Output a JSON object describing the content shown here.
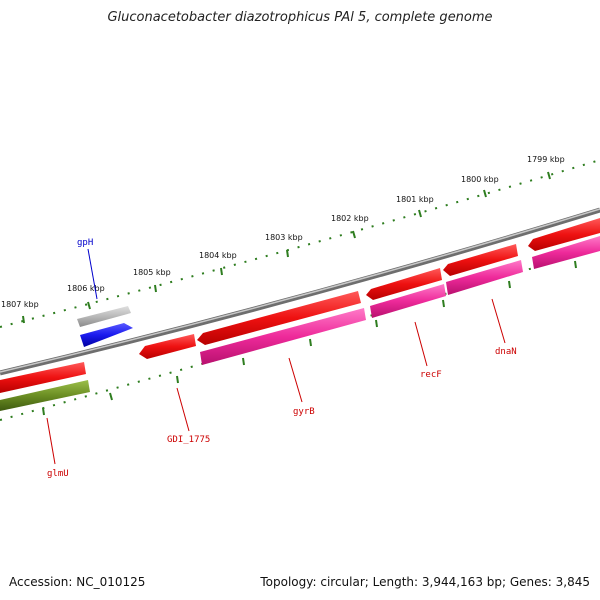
{
  "header": {
    "title": "Gluconacetobacter diazotrophicus PAl 5, complete genome"
  },
  "footer": {
    "accession": "Accession: NC_010125",
    "summary": "Topology: circular; Length: 3,944,163 bp; Genes: 3,845"
  },
  "colors": {
    "backbone": "#8a8a8a",
    "tick": "#2e7d1f",
    "cds_forward": "#ee1111",
    "cds_reverse": "#ee2a9a",
    "gene_rna_grey": "#b8b8b8",
    "gene_blue": "#1a1aee",
    "gene_green": "#6b8e23",
    "label_red": "#cc0000",
    "label_blue": "#0000cc"
  },
  "scale": {
    "tick_labels": [
      "1807 kbp",
      "1806 kbp",
      "1805 kbp",
      "1804 kbp",
      "1803 kbp",
      "1802 kbp",
      "1801 kbp",
      "1800 kbp",
      "1799 kbp"
    ]
  },
  "features": {
    "labels": [
      {
        "id": "gpH",
        "text": "gpH",
        "color": "blue"
      },
      {
        "id": "glmU",
        "text": "glmU",
        "color": "red"
      },
      {
        "id": "GDI_1775",
        "text": "GDI_1775",
        "color": "red"
      },
      {
        "id": "gyrB",
        "text": "gyrB",
        "color": "red"
      },
      {
        "id": "recF",
        "text": "recF",
        "color": "red"
      },
      {
        "id": "dnaN",
        "text": "dnaN",
        "color": "red"
      }
    ]
  }
}
